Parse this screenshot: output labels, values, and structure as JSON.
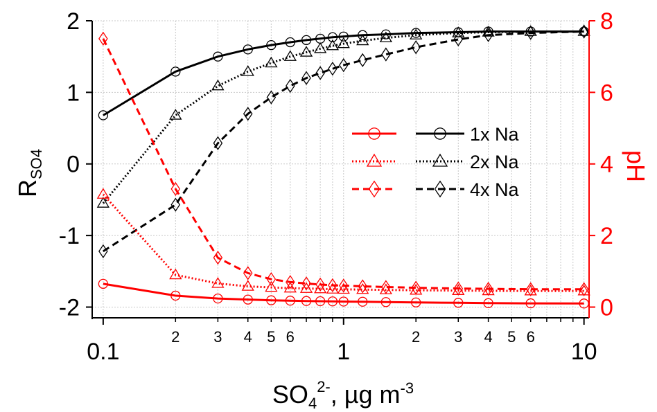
{
  "colors": {
    "left": "#000000",
    "right": "#ff0000",
    "grid": "#c8c8c8"
  },
  "chart_data": {
    "type": "line",
    "title": "",
    "xlabel": {
      "base": "SO",
      "sub": "4",
      "sup": "2-",
      "rest": ", µg m",
      "sup2": "-3"
    },
    "ylabel_left": {
      "base": "R",
      "sub": "SO4"
    },
    "ylabel_right": "pH",
    "x_scale": "log",
    "xlim": [
      0.09,
      10.5
    ],
    "ylim_left": [
      -2.15,
      2.0
    ],
    "ylim_right": [
      -0.3,
      8.0
    ],
    "x_major_ticks": [
      {
        "value": 0.1,
        "label": "0.1"
      },
      {
        "value": 1,
        "label": "1"
      },
      {
        "value": 10,
        "label": "10"
      }
    ],
    "x_minor_ticks": [
      {
        "value": 0.2,
        "label": "2"
      },
      {
        "value": 0.3,
        "label": "3"
      },
      {
        "value": 0.4,
        "label": "4"
      },
      {
        "value": 0.5,
        "label": "5"
      },
      {
        "value": 0.6,
        "label": "6"
      },
      {
        "value": 0.7,
        "label": ""
      },
      {
        "value": 0.8,
        "label": ""
      },
      {
        "value": 0.9,
        "label": ""
      },
      {
        "value": 2,
        "label": "2"
      },
      {
        "value": 3,
        "label": "3"
      },
      {
        "value": 4,
        "label": "4"
      },
      {
        "value": 5,
        "label": "5"
      },
      {
        "value": 6,
        "label": "6"
      },
      {
        "value": 7,
        "label": ""
      },
      {
        "value": 8,
        "label": ""
      },
      {
        "value": 9,
        "label": ""
      }
    ],
    "y_left_ticks": [
      {
        "value": -2,
        "label": "-2"
      },
      {
        "value": -1,
        "label": "-1"
      },
      {
        "value": 0,
        "label": "0"
      },
      {
        "value": 1,
        "label": "1"
      },
      {
        "value": 2,
        "label": "2"
      }
    ],
    "y_right_ticks": [
      {
        "value": 0,
        "label": "0"
      },
      {
        "value": 2,
        "label": "2"
      },
      {
        "value": 4,
        "label": "4"
      },
      {
        "value": 6,
        "label": "6"
      },
      {
        "value": 8,
        "label": "8"
      }
    ],
    "grid": true,
    "legend_position": "center-right",
    "legend": [
      {
        "label": "1x Na",
        "marker": "circle",
        "dash": "solid"
      },
      {
        "label": "2x Na",
        "marker": "triangle",
        "dash": "dotted"
      },
      {
        "label": "4x Na",
        "marker": "diamond",
        "dash": "dashed"
      }
    ],
    "series": [
      {
        "legend": "1x Na",
        "axis": "left",
        "color": "#000000",
        "marker": "circle",
        "dash": "solid",
        "x": [
          0.1,
          0.2,
          0.3,
          0.4,
          0.5,
          0.6,
          0.7,
          0.8,
          0.9,
          1.0,
          1.2,
          1.5,
          2.0,
          3.0,
          4.0,
          6.0,
          10.0
        ],
        "y": [
          0.68,
          1.29,
          1.5,
          1.6,
          1.66,
          1.7,
          1.73,
          1.75,
          1.77,
          1.78,
          1.8,
          1.81,
          1.83,
          1.84,
          1.85,
          1.85,
          1.85
        ]
      },
      {
        "legend": "2x Na",
        "axis": "left",
        "color": "#000000",
        "marker": "triangle",
        "dash": "dotted",
        "x": [
          0.1,
          0.2,
          0.3,
          0.4,
          0.5,
          0.6,
          0.7,
          0.8,
          0.9,
          1.0,
          1.2,
          1.5,
          2.0,
          3.0,
          4.0,
          6.0,
          10.0
        ],
        "y": [
          -0.55,
          0.68,
          1.09,
          1.29,
          1.41,
          1.5,
          1.56,
          1.61,
          1.65,
          1.68,
          1.72,
          1.76,
          1.8,
          1.83,
          1.84,
          1.85,
          1.85
        ]
      },
      {
        "legend": "4x Na",
        "axis": "left",
        "color": "#000000",
        "marker": "diamond",
        "dash": "dashed",
        "x": [
          0.1,
          0.2,
          0.3,
          0.4,
          0.5,
          0.6,
          0.7,
          0.8,
          0.9,
          1.0,
          1.2,
          1.5,
          2.0,
          3.0,
          4.0,
          6.0,
          10.0
        ],
        "y": [
          -1.22,
          -0.57,
          0.29,
          0.7,
          0.93,
          1.09,
          1.2,
          1.27,
          1.33,
          1.38,
          1.45,
          1.53,
          1.63,
          1.74,
          1.8,
          1.83,
          1.85
        ]
      },
      {
        "legend": "1x Na",
        "axis": "right",
        "color": "#ff0000",
        "marker": "circle",
        "dash": "solid",
        "x": [
          0.1,
          0.2,
          0.3,
          0.4,
          0.5,
          0.6,
          0.7,
          0.8,
          0.9,
          1.0,
          1.2,
          1.5,
          2.0,
          3.0,
          4.0,
          6.0,
          10.0
        ],
        "y": [
          0.65,
          0.32,
          0.24,
          0.21,
          0.19,
          0.18,
          0.17,
          0.165,
          0.16,
          0.155,
          0.15,
          0.14,
          0.13,
          0.12,
          0.11,
          0.105,
          0.1
        ]
      },
      {
        "legend": "2x Na",
        "axis": "right",
        "color": "#ff0000",
        "marker": "triangle",
        "dash": "dotted",
        "x": [
          0.1,
          0.2,
          0.3,
          0.4,
          0.5,
          0.6,
          0.7,
          0.8,
          0.9,
          1.0,
          1.2,
          1.5,
          2.0,
          3.0,
          4.0,
          6.0,
          10.0
        ],
        "y": [
          3.15,
          0.9,
          0.66,
          0.58,
          0.55,
          0.53,
          0.52,
          0.51,
          0.5,
          0.495,
          0.49,
          0.48,
          0.47,
          0.46,
          0.455,
          0.45,
          0.45
        ]
      },
      {
        "legend": "4x Na",
        "axis": "right",
        "color": "#ff0000",
        "marker": "diamond",
        "dash": "dashed",
        "x": [
          0.1,
          0.2,
          0.3,
          0.4,
          0.5,
          0.6,
          0.7,
          0.8,
          0.9,
          1.0,
          1.2,
          1.5,
          2.0,
          3.0,
          4.0,
          6.0,
          10.0
        ],
        "y": [
          7.5,
          3.3,
          1.38,
          0.95,
          0.78,
          0.7,
          0.66,
          0.63,
          0.61,
          0.6,
          0.58,
          0.56,
          0.54,
          0.52,
          0.51,
          0.5,
          0.5
        ]
      }
    ]
  }
}
